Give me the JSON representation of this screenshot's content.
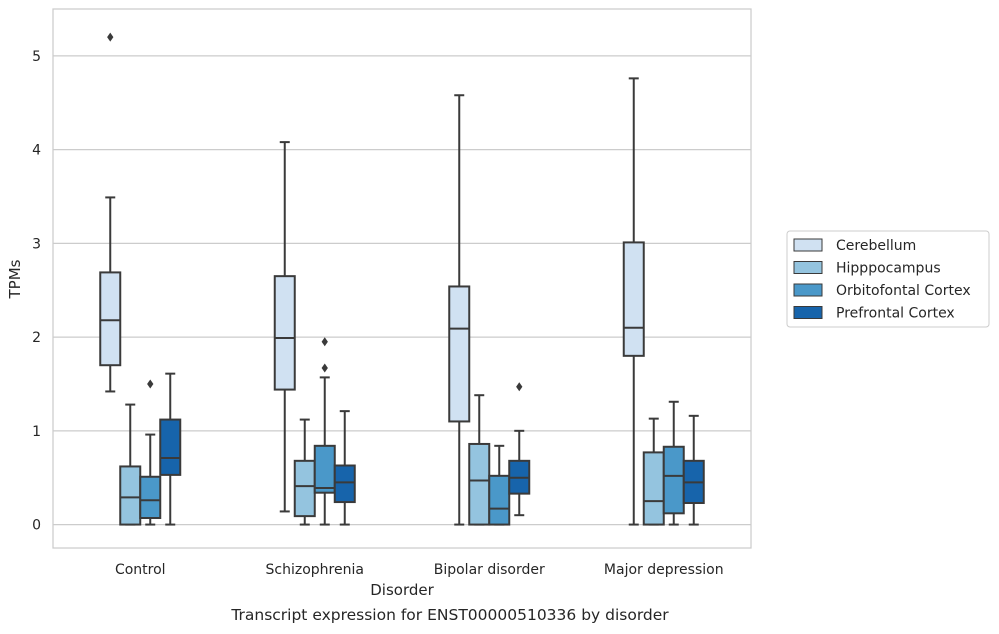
{
  "caption": "Transcript expression for ENST00000510336 by disorder",
  "chart_data": {
    "type": "boxplot",
    "title": "",
    "xlabel": "Disorder",
    "ylabel": "TPMs",
    "ylim": [
      -0.25,
      5.5
    ],
    "yticks": [
      0,
      1,
      2,
      3,
      4,
      5
    ],
    "grid": true,
    "legend_position": "right",
    "categories": [
      "Control",
      "Schizophrenia",
      "Bipolar disorder",
      "Major depression"
    ],
    "series": [
      {
        "name": "Cerebellum",
        "color": "#d0e1f2",
        "boxes": [
          {
            "whisker_low": 1.42,
            "q1": 1.7,
            "median": 2.18,
            "q3": 2.69,
            "whisker_high": 3.49,
            "outliers": [
              5.2
            ]
          },
          {
            "whisker_low": 0.14,
            "q1": 1.44,
            "median": 1.99,
            "q3": 2.65,
            "whisker_high": 4.08,
            "outliers": []
          },
          {
            "whisker_low": 0.0,
            "q1": 1.1,
            "median": 2.09,
            "q3": 2.54,
            "whisker_high": 4.58,
            "outliers": []
          },
          {
            "whisker_low": 0.0,
            "q1": 1.8,
            "median": 2.1,
            "q3": 3.01,
            "whisker_high": 4.76,
            "outliers": []
          }
        ]
      },
      {
        "name": "Hipppocampus",
        "color": "#94c4df",
        "boxes": [
          {
            "whisker_low": 0.0,
            "q1": 0.0,
            "median": 0.29,
            "q3": 0.62,
            "whisker_high": 1.28,
            "outliers": []
          },
          {
            "whisker_low": 0.0,
            "q1": 0.09,
            "median": 0.41,
            "q3": 0.68,
            "whisker_high": 1.12,
            "outliers": []
          },
          {
            "whisker_low": 0.0,
            "q1": 0.0,
            "median": 0.47,
            "q3": 0.86,
            "whisker_high": 1.38,
            "outliers": []
          },
          {
            "whisker_low": 0.0,
            "q1": 0.0,
            "median": 0.25,
            "q3": 0.77,
            "whisker_high": 1.13,
            "outliers": []
          }
        ]
      },
      {
        "name": "Orbitofontal Cortex",
        "color": "#4a98c9",
        "boxes": [
          {
            "whisker_low": 0.0,
            "q1": 0.07,
            "median": 0.26,
            "q3": 0.51,
            "whisker_high": 0.96,
            "outliers": [
              1.5
            ]
          },
          {
            "whisker_low": 0.0,
            "q1": 0.34,
            "median": 0.39,
            "q3": 0.84,
            "whisker_high": 1.57,
            "outliers": [
              1.67,
              1.95
            ]
          },
          {
            "whisker_low": 0.0,
            "q1": 0.0,
            "median": 0.17,
            "q3": 0.52,
            "whisker_high": 0.84,
            "outliers": []
          },
          {
            "whisker_low": 0.0,
            "q1": 0.12,
            "median": 0.52,
            "q3": 0.83,
            "whisker_high": 1.31,
            "outliers": []
          }
        ]
      },
      {
        "name": "Prefrontal Cortex",
        "color": "#1764ab",
        "boxes": [
          {
            "whisker_low": 0.0,
            "q1": 0.53,
            "median": 0.71,
            "q3": 1.12,
            "whisker_high": 1.61,
            "outliers": []
          },
          {
            "whisker_low": 0.0,
            "q1": 0.24,
            "median": 0.45,
            "q3": 0.63,
            "whisker_high": 1.21,
            "outliers": []
          },
          {
            "whisker_low": 0.1,
            "q1": 0.33,
            "median": 0.5,
            "q3": 0.68,
            "whisker_high": 1.0,
            "outliers": [
              1.47
            ]
          },
          {
            "whisker_low": 0.0,
            "q1": 0.23,
            "median": 0.45,
            "q3": 0.68,
            "whisker_high": 1.16,
            "outliers": []
          }
        ]
      }
    ]
  }
}
